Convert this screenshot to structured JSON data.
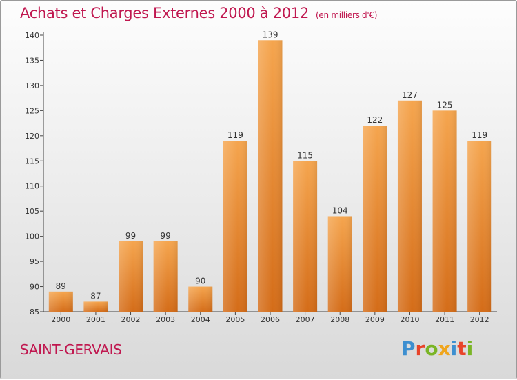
{
  "header": {
    "title": "Achats et Charges Externes 2000 à 2012",
    "subtitle": "(en milliers d'€)"
  },
  "footer": {
    "name": "SAINT-GERVAIS",
    "logo": "Proxiti"
  },
  "colors": {
    "accent": "#c0174f",
    "bar_top": "#f5a54e",
    "bar_bottom": "#d46c18"
  },
  "chart_data": {
    "type": "bar",
    "title": "Achats et Charges Externes 2000 à 2012",
    "subtitle": "(en milliers d'€)",
    "categories": [
      "2000",
      "2001",
      "2002",
      "2003",
      "2004",
      "2005",
      "2006",
      "2007",
      "2008",
      "2009",
      "2010",
      "2011",
      "2012"
    ],
    "values": [
      89,
      87,
      99,
      99,
      90,
      119,
      139,
      115,
      104,
      122,
      127,
      125,
      119
    ],
    "xlabel": "",
    "ylabel": "",
    "ylim": [
      85,
      140
    ],
    "yticks": [
      85,
      90,
      95,
      100,
      105,
      110,
      115,
      120,
      125,
      130,
      135,
      140
    ],
    "grid": false,
    "data_labels": true
  }
}
